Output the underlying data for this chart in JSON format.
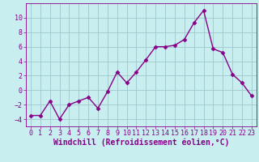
{
  "x": [
    0,
    1,
    2,
    3,
    4,
    5,
    6,
    7,
    8,
    9,
    10,
    11,
    12,
    13,
    14,
    15,
    16,
    17,
    18,
    19,
    20,
    21,
    22,
    23
  ],
  "y": [
    -3.5,
    -3.5,
    -1.5,
    -4.0,
    -2.0,
    -1.5,
    -1.0,
    -2.5,
    -0.2,
    2.5,
    1.0,
    2.5,
    4.2,
    6.0,
    6.0,
    6.2,
    7.0,
    9.3,
    11.0,
    5.7,
    5.2,
    2.2,
    1.0,
    -0.8
  ],
  "line_color": "#880088",
  "marker": "D",
  "markersize": 2.5,
  "linewidth": 1.0,
  "bg_color": "#c8eef0",
  "grid_color": "#9ec8cc",
  "xlabel": "Windchill (Refroidissement éolien,°C)",
  "xlim": [
    -0.5,
    23.5
  ],
  "ylim": [
    -5,
    12
  ],
  "yticks": [
    -4,
    -2,
    0,
    2,
    4,
    6,
    8,
    10
  ],
  "xticks": [
    0,
    1,
    2,
    3,
    4,
    5,
    6,
    7,
    8,
    9,
    10,
    11,
    12,
    13,
    14,
    15,
    16,
    17,
    18,
    19,
    20,
    21,
    22,
    23
  ],
  "tick_color": "#880088",
  "label_fontsize": 6.0,
  "xlabel_fontsize": 7.0
}
